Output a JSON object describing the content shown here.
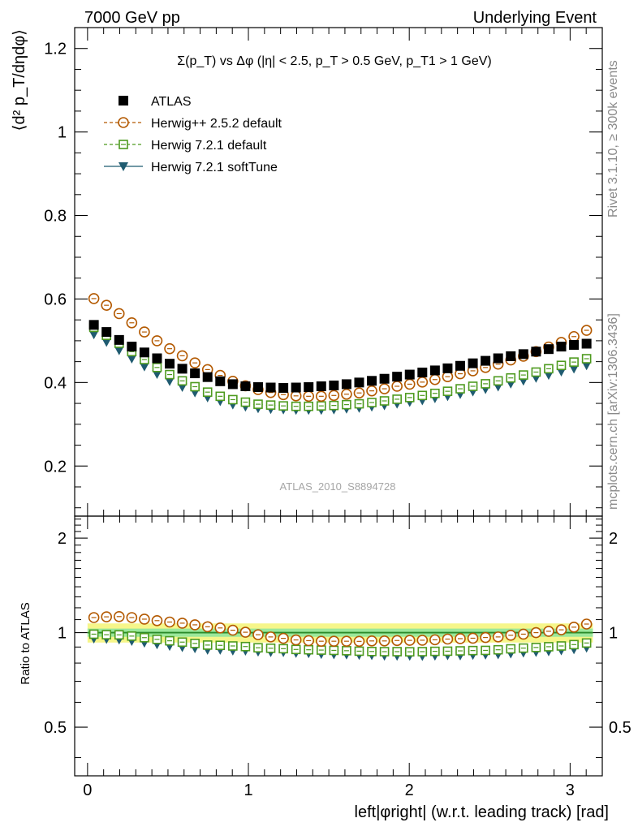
{
  "header": {
    "left": "7000 GeV pp",
    "right": "Underlying Event"
  },
  "side_labels": {
    "rivet": "Rivet 3.1.10, ≥ 300k events",
    "mcplots": "mcplots.cern.ch [arXiv:1306.3436]"
  },
  "watermark": "ATLAS_2010_S8894728",
  "colors": {
    "atlas": "#000000",
    "herwigpp": "#b35900",
    "herwig721": "#4d9a1e",
    "softtune": "#1f5b70",
    "band_outer": "#f6f68a",
    "band_inner": "#9be89b",
    "ratio_line": "#2a8a2a"
  },
  "chart_data": [
    {
      "type": "scatter",
      "title": "Σ(p_T) vs Δφ (|η| < 2.5, p_T > 0.5 GeV, p_T1 > 1 GeV)",
      "ylabel": "⟨d² p_T/dηdφ⟩",
      "xlabel": "",
      "xlim": [
        -0.08,
        3.2
      ],
      "ylim": [
        0.08,
        1.25
      ],
      "yticks": [
        0.2,
        0.4,
        0.6,
        0.8,
        1.0,
        1.2
      ],
      "yticklabels": [
        "0.2",
        "0.4",
        "0.6",
        "0.8",
        "1",
        "1.2"
      ],
      "legend_position": "top-left",
      "x": [
        0.0393,
        0.1178,
        0.1963,
        0.2749,
        0.3534,
        0.432,
        0.5105,
        0.589,
        0.6676,
        0.7461,
        0.8247,
        0.9032,
        0.9817,
        1.0603,
        1.1388,
        1.2174,
        1.2959,
        1.3744,
        1.453,
        1.5315,
        1.6101,
        1.6886,
        1.7671,
        1.8457,
        1.9242,
        2.0028,
        2.0813,
        2.1598,
        2.2384,
        2.3169,
        2.3955,
        2.474,
        2.5525,
        2.6311,
        2.7096,
        2.7882,
        2.8667,
        2.9452,
        3.0238,
        3.1023
      ],
      "series": [
        {
          "name": "ATLAS",
          "marker": "filled-square",
          "color": "#000000",
          "values": [
            0.538,
            0.521,
            0.502,
            0.486,
            0.472,
            0.458,
            0.445,
            0.433,
            0.422,
            0.413,
            0.403,
            0.396,
            0.391,
            0.389,
            0.388,
            0.387,
            0.388,
            0.389,
            0.391,
            0.393,
            0.396,
            0.4,
            0.404,
            0.409,
            0.414,
            0.419,
            0.424,
            0.429,
            0.434,
            0.44,
            0.446,
            0.452,
            0.458,
            0.463,
            0.468,
            0.474,
            0.48,
            0.486,
            0.49,
            0.493
          ]
        },
        {
          "name": "Herwig++ 2.5.2 default",
          "marker": "open-circle",
          "color": "#b35900",
          "values": [
            0.601,
            0.585,
            0.565,
            0.543,
            0.521,
            0.5,
            0.481,
            0.464,
            0.447,
            0.431,
            0.417,
            0.403,
            0.392,
            0.383,
            0.376,
            0.371,
            0.368,
            0.367,
            0.367,
            0.369,
            0.372,
            0.375,
            0.38,
            0.385,
            0.391,
            0.396,
            0.401,
            0.407,
            0.414,
            0.421,
            0.428,
            0.436,
            0.444,
            0.454,
            0.463,
            0.474,
            0.485,
            0.496,
            0.51,
            0.525
          ]
        },
        {
          "name": "Herwig 7.2.1 default",
          "marker": "open-square",
          "color": "#4d9a1e",
          "values": [
            0.532,
            0.513,
            0.494,
            0.474,
            0.455,
            0.436,
            0.419,
            0.404,
            0.39,
            0.377,
            0.367,
            0.359,
            0.353,
            0.348,
            0.346,
            0.344,
            0.343,
            0.343,
            0.344,
            0.345,
            0.347,
            0.349,
            0.352,
            0.356,
            0.36,
            0.364,
            0.369,
            0.374,
            0.379,
            0.385,
            0.391,
            0.397,
            0.404,
            0.411,
            0.418,
            0.425,
            0.433,
            0.441,
            0.449,
            0.457
          ]
        },
        {
          "name": "Herwig 7.2.1 softTune",
          "marker": "filled-triangle-down",
          "color": "#1f5b70",
          "values": [
            0.515,
            0.497,
            0.477,
            0.457,
            0.438,
            0.42,
            0.403,
            0.389,
            0.376,
            0.364,
            0.355,
            0.347,
            0.342,
            0.338,
            0.336,
            0.335,
            0.334,
            0.334,
            0.334,
            0.335,
            0.337,
            0.339,
            0.342,
            0.345,
            0.349,
            0.353,
            0.357,
            0.362,
            0.367,
            0.372,
            0.378,
            0.384,
            0.39,
            0.397,
            0.404,
            0.411,
            0.418,
            0.426,
            0.433,
            0.441
          ]
        }
      ]
    },
    {
      "type": "scatter",
      "title": "",
      "ylabel": "Ratio to ATLAS",
      "xlabel": "left|φright| (w.r.t. leading track) [rad]",
      "xlim": [
        -0.08,
        3.2
      ],
      "ylim": [
        0.35,
        2.35
      ],
      "ylog": true,
      "xticks": [
        0,
        1,
        2,
        3
      ],
      "xticklabels": [
        "0",
        "1",
        "2",
        "3"
      ],
      "yticks": [
        0.5,
        1,
        2
      ],
      "yticklabels": [
        "0.5",
        "1",
        "2"
      ],
      "reference_band": {
        "inner": [
          0.97,
          1.03
        ],
        "outer": [
          0.93,
          1.07
        ]
      },
      "series_ratios": [
        {
          "name": "Herwig++ 2.5.2 default",
          "values": [
            1.117,
            1.123,
            1.125,
            1.117,
            1.104,
            1.092,
            1.081,
            1.072,
            1.059,
            1.044,
            1.035,
            1.018,
            1.003,
            0.985,
            0.969,
            0.959,
            0.948,
            0.943,
            0.939,
            0.939,
            0.939,
            0.938,
            0.941,
            0.941,
            0.944,
            0.945,
            0.946,
            0.949,
            0.954,
            0.957,
            0.96,
            0.965,
            0.969,
            0.981,
            0.989,
            1.0,
            1.01,
            1.021,
            1.041,
            1.065
          ]
        },
        {
          "name": "Herwig 7.2.1 default",
          "values": [
            0.989,
            0.985,
            0.984,
            0.975,
            0.964,
            0.952,
            0.942,
            0.933,
            0.924,
            0.913,
            0.911,
            0.907,
            0.903,
            0.895,
            0.892,
            0.889,
            0.884,
            0.882,
            0.88,
            0.878,
            0.876,
            0.873,
            0.871,
            0.87,
            0.87,
            0.869,
            0.87,
            0.872,
            0.873,
            0.875,
            0.877,
            0.878,
            0.882,
            0.888,
            0.893,
            0.897,
            0.902,
            0.907,
            0.916,
            0.927
          ]
        },
        {
          "name": "Herwig 7.2.1 softTune",
          "values": [
            0.957,
            0.954,
            0.95,
            0.94,
            0.928,
            0.917,
            0.906,
            0.898,
            0.891,
            0.881,
            0.881,
            0.876,
            0.875,
            0.869,
            0.866,
            0.866,
            0.861,
            0.859,
            0.854,
            0.852,
            0.851,
            0.848,
            0.847,
            0.844,
            0.843,
            0.843,
            0.842,
            0.844,
            0.846,
            0.845,
            0.848,
            0.85,
            0.852,
            0.857,
            0.863,
            0.867,
            0.871,
            0.877,
            0.884,
            0.895
          ]
        }
      ]
    }
  ]
}
